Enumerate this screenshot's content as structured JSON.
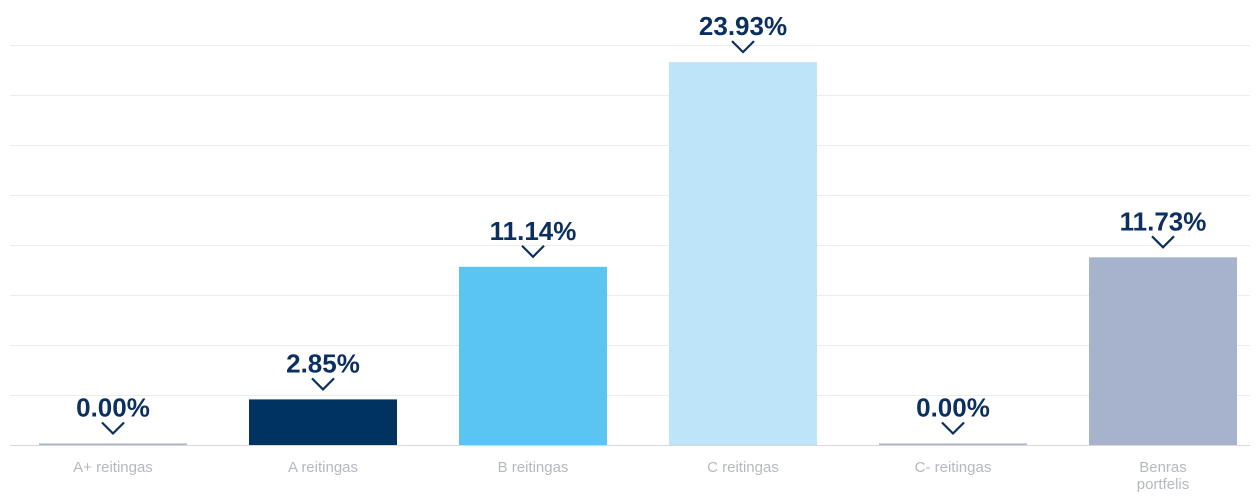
{
  "chart_data": {
    "type": "bar",
    "categories": [
      [
        "A+ reitingas"
      ],
      [
        "A reitingas"
      ],
      [
        "B reitingas"
      ],
      [
        "C reitingas"
      ],
      [
        "C- reitingas"
      ],
      [
        "Benras",
        "portfelis"
      ]
    ],
    "values": [
      0.0,
      2.85,
      11.14,
      23.93,
      0.0,
      11.73
    ],
    "value_labels": [
      "0.00%",
      "2.85%",
      "11.14%",
      "23.93%",
      "0.00%",
      "11.73%"
    ],
    "bar_colors": [
      "#a7b2cc",
      "#00335f",
      "#5bc5f2",
      "#bde4f9",
      "#a7b2cc",
      "#a7b2cc"
    ],
    "label_color": "#0b2f5e",
    "ylim": [
      0,
      25
    ],
    "gridlines": true,
    "legend": "none"
  }
}
